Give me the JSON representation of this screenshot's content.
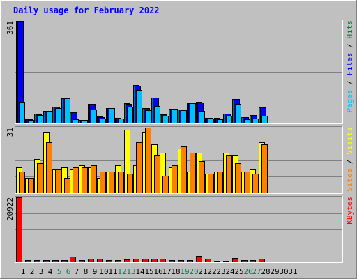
{
  "chart_data": {
    "type": "bar",
    "title": "Daily usage for February 2022",
    "categories": [
      "1",
      "2",
      "3",
      "4",
      "5",
      "6",
      "7",
      "8",
      "9",
      "10",
      "11",
      "12",
      "13",
      "14",
      "15",
      "16",
      "17",
      "18",
      "19",
      "20",
      "21",
      "22",
      "23",
      "24",
      "25",
      "26",
      "27",
      "28",
      "29",
      "30",
      "31"
    ],
    "weekend_days": [
      "5",
      "6",
      "12",
      "13",
      "19",
      "20",
      "26",
      "27"
    ],
    "panels": [
      {
        "id": "hits",
        "max_label": "361",
        "ylim": [
          0,
          361
        ],
        "series": [
          {
            "name": "Hits",
            "color": "#008040",
            "values": [
              361,
              14,
              31,
              43,
              57,
              87,
              38,
              10,
              67,
              22,
              53,
              17,
              68,
              133,
              52,
              90,
              30,
              50,
              47,
              70,
              73,
              18,
              17,
              32,
              85,
              20,
              28,
              55,
              0,
              0,
              0
            ]
          },
          {
            "name": "Files",
            "color": "#0000ff",
            "values": [
              360,
              13,
              30,
              42,
              56,
              86,
              37,
              9,
              66,
              21,
              52,
              16,
              67,
              132,
              51,
              89,
              29,
              49,
              46,
              69,
              72,
              17,
              16,
              31,
              84,
              19,
              27,
              54,
              0,
              0,
              0
            ]
          },
          {
            "name": "Pages",
            "color": "#00c0ff",
            "values": [
              75,
              10,
              28,
              42,
              52,
              86,
              12,
              9,
              47,
              14,
              52,
              16,
              56,
              116,
              45,
              59,
              24,
              49,
              45,
              68,
              42,
              14,
              13,
              25,
              66,
              13,
              15,
              24,
              0,
              0,
              0
            ]
          }
        ],
        "axis_labels": [
          {
            "text": "Pages",
            "color": "#00c0ff"
          },
          {
            "text": " / ",
            "color": "#000000"
          },
          {
            "text": "Files",
            "color": "#0000ff"
          },
          {
            "text": " / ",
            "color": "#000000"
          },
          {
            "text": "Hits",
            "color": "#008040"
          }
        ]
      },
      {
        "id": "visits",
        "max_label": "31",
        "ylim": [
          0,
          31
        ],
        "series": [
          {
            "name": "Visits",
            "color": "#ffff00",
            "values": [
              12,
              7,
              16,
              29,
              11,
              12,
              11,
              13,
              12,
              7,
              10,
              13,
              30,
              13,
              29,
              23,
              19,
              12,
              21,
              10,
              19,
              9,
              10,
              19,
              18,
              10,
              11,
              24,
              0,
              0,
              0
            ]
          },
          {
            "name": "Sites",
            "color": "#ff8000",
            "values": [
              10,
              7,
              14,
              24,
              11,
              7,
              12,
              12,
              13,
              10,
              10,
              10,
              9,
              24,
              31,
              18,
              8,
              13,
              22,
              19,
              15,
              9,
              10,
              18,
              14,
              10,
              9,
              23,
              0,
              0,
              0
            ]
          }
        ],
        "axis_labels": [
          {
            "text": "Sites",
            "color": "#ff8000"
          },
          {
            "text": " / ",
            "color": "#000000"
          },
          {
            "text": "Visits",
            "color": "#ffff00"
          }
        ]
      },
      {
        "id": "kbytes",
        "max_label": "20922",
        "ylim": [
          0,
          20922
        ],
        "series": [
          {
            "name": "KBytes",
            "color": "#ff0000",
            "values": [
              20922,
              350,
              350,
              550,
              550,
              550,
              1600,
              400,
              1000,
              800,
              550,
              350,
              700,
              1000,
              800,
              800,
              800,
              550,
              550,
              550,
              1900,
              800,
              200,
              200,
              1100,
              550,
              550,
              900,
              0,
              0,
              0
            ]
          }
        ],
        "axis_labels": [
          {
            "text": "KBytes",
            "color": "#ff0000"
          }
        ]
      }
    ],
    "colors": {
      "background": "#c0c0c0",
      "title": "#0000ff",
      "weekday_label": "#000000",
      "weekend_label": "#00805c",
      "grid": "#808080"
    },
    "grid": true
  }
}
